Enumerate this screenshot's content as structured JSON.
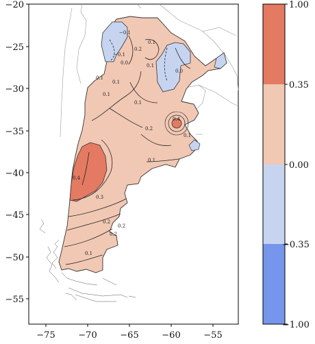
{
  "map": {
    "region": "Argentina",
    "x_ticks": [
      "−75",
      "−70",
      "−65",
      "−60",
      "−55"
    ],
    "y_ticks": [
      "−20",
      "−25",
      "−30",
      "−35",
      "−40",
      "−45",
      "−50",
      "−55"
    ],
    "x_range": [
      -77,
      -52
    ],
    "y_range": [
      -58,
      -20
    ],
    "contour_labels": [
      "0.1",
      "0.1",
      "0.2",
      "0.1",
      "0.1",
      "0.0",
      "0.2",
      "0.1",
      "0.1",
      "0.1",
      "0.4",
      "0.3",
      "0.2",
      "0.2",
      "0.1",
      "0.2",
      "0.4",
      "−0.1",
      "−0.1",
      "0.0",
      "0.1"
    ]
  },
  "colorbar": {
    "ticks": [
      "1.00",
      "0.35",
      "0.00",
      "−0.35",
      "−1.00"
    ],
    "bins": [
      {
        "from": 0.35,
        "to": 1.0,
        "color": "#e47a62"
      },
      {
        "from": 0.0,
        "to": 0.35,
        "color": "#f1c8b4"
      },
      {
        "from": -0.35,
        "to": 0.0,
        "color": "#c7d4f0"
      },
      {
        "from": -1.0,
        "to": -0.35,
        "color": "#7596ec"
      }
    ]
  },
  "colors": {
    "strong_positive": "#e47a62",
    "weak_positive": "#f1c8b4",
    "weak_negative": "#c7d4f0",
    "strong_negative": "#7596ec"
  }
}
